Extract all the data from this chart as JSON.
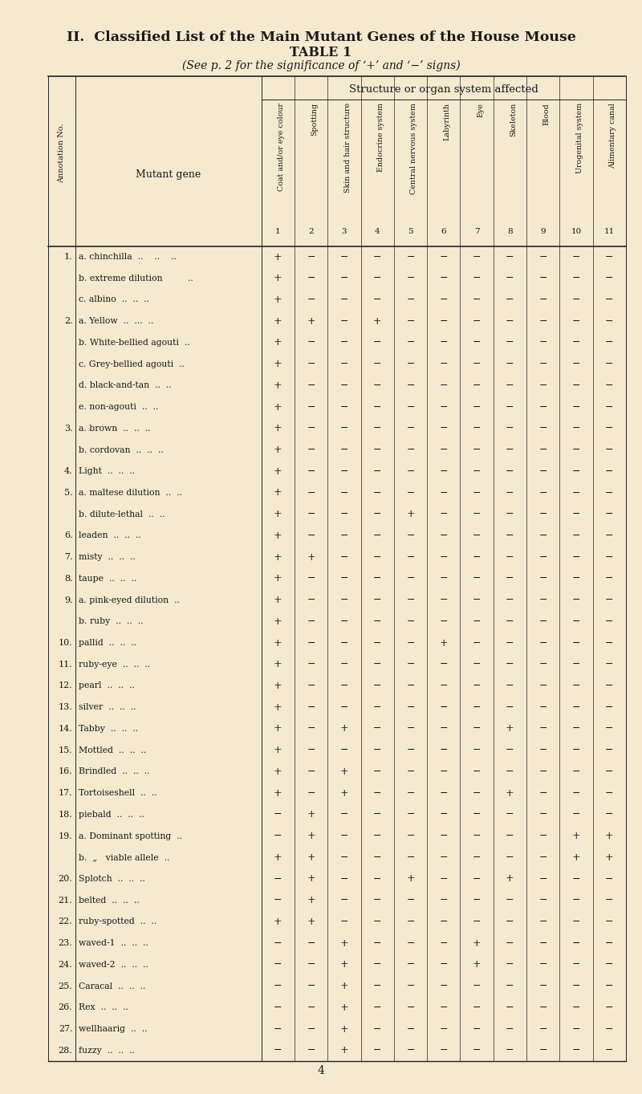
{
  "title_line1": "II.  Classified List of the Main Mutant Genes of the House Mouse",
  "title_line2": "TABLE 1",
  "title_line3": "(See p. 2 for the significance of ‘+’ and ‘−’ signs)",
  "page_number": "4",
  "bg_color": "#f5ead0",
  "col_headers": [
    "Coat and/or eye colour",
    "Spotting",
    "Skin and hair structure",
    "Endocrine system",
    "Central nervous system",
    "Labyrinth",
    "Eye",
    "Skeleton",
    "Blood",
    "Urogenital system",
    "Alimentary canal"
  ],
  "col_numbers": [
    "1",
    "2",
    "3",
    "4",
    "5",
    "6",
    "7",
    "8",
    "9",
    "10",
    "11"
  ],
  "rows": [
    {
      "num": "1.",
      "gene": "a. chinchilla  ..    ..    ..",
      "vals": [
        "+",
        "−",
        "−",
        "−",
        "−",
        "−",
        "−",
        "−",
        "−",
        "−",
        "−"
      ]
    },
    {
      "num": "",
      "gene": "b. extreme dilution         ..",
      "vals": [
        "+",
        "−",
        "−",
        "−",
        "−",
        "−",
        "−",
        "−",
        "−",
        "−",
        "−"
      ]
    },
    {
      "num": "",
      "gene": "c. albino  ..  ..  ..",
      "vals": [
        "+",
        "−",
        "−",
        "−",
        "−",
        "−",
        "−",
        "−",
        "−",
        "−",
        "−"
      ]
    },
    {
      "num": "2.",
      "gene": "a. Yellow  ..  ...  ..",
      "vals": [
        "+",
        "+",
        "−",
        "+",
        "−",
        "−",
        "−",
        "−",
        "−",
        "−",
        "−"
      ]
    },
    {
      "num": "",
      "gene": "b. White-bellied agouti  ..",
      "vals": [
        "+",
        "−",
        "−",
        "−",
        "−",
        "−",
        "−",
        "−",
        "−",
        "−",
        "−"
      ]
    },
    {
      "num": "",
      "gene": "c. Grey-bellied agouti  ..",
      "vals": [
        "+",
        "−",
        "−",
        "−",
        "−",
        "−",
        "−",
        "−",
        "−",
        "−",
        "−"
      ]
    },
    {
      "num": "",
      "gene": "d. black-and-tan  ..  ..",
      "vals": [
        "+",
        "−",
        "−",
        "−",
        "−",
        "−",
        "−",
        "−",
        "−",
        "−",
        "−"
      ]
    },
    {
      "num": "",
      "gene": "e. non-agouti  ..  ..",
      "vals": [
        "+",
        "−",
        "−",
        "−",
        "−",
        "−",
        "−",
        "−",
        "−",
        "−",
        "−"
      ]
    },
    {
      "num": "3.",
      "gene": "a. brown  ..  ..  ..",
      "vals": [
        "+",
        "−",
        "−",
        "−",
        "−",
        "−",
        "−",
        "−",
        "−",
        "−",
        "−"
      ]
    },
    {
      "num": "",
      "gene": "b. cordovan  ..  ..  ..",
      "vals": [
        "+",
        "−",
        "−",
        "−",
        "−",
        "−",
        "−",
        "−",
        "−",
        "−",
        "−"
      ]
    },
    {
      "num": "4.",
      "gene": "Light  ..  ..  ..",
      "vals": [
        "+",
        "−",
        "−",
        "−",
        "−",
        "−",
        "−",
        "−",
        "−",
        "−",
        "−"
      ]
    },
    {
      "num": "5.",
      "gene": "a. maltese dilution  ..  ..",
      "vals": [
        "+",
        "−",
        "−",
        "−",
        "−",
        "−",
        "−",
        "−",
        "−",
        "−",
        "−"
      ]
    },
    {
      "num": "",
      "gene": "b. dilute-lethal  ..  ..",
      "vals": [
        "+",
        "−",
        "−",
        "−",
        "+",
        "−",
        "−",
        "−",
        "−",
        "−",
        "−"
      ]
    },
    {
      "num": "6.",
      "gene": "leaden  ..  ..  ..",
      "vals": [
        "+",
        "−",
        "−",
        "−",
        "−",
        "−",
        "−",
        "−",
        "−",
        "−",
        "−"
      ]
    },
    {
      "num": "7.",
      "gene": "misty  ..  ..  ..",
      "vals": [
        "+",
        "+",
        "−",
        "−",
        "−",
        "−",
        "−",
        "−",
        "−",
        "−",
        "−"
      ]
    },
    {
      "num": "8.",
      "gene": "taupe  ..  ..  ..",
      "vals": [
        "+",
        "−",
        "−",
        "−",
        "−",
        "−",
        "−",
        "−",
        "−",
        "−",
        "−"
      ]
    },
    {
      "num": "9.",
      "gene": "a. pink-eyed dilution  ..",
      "vals": [
        "+",
        "−",
        "−",
        "−",
        "−",
        "−",
        "−",
        "−",
        "−",
        "−",
        "−"
      ]
    },
    {
      "num": "",
      "gene": "b. ruby  ..  ..  ..",
      "vals": [
        "+",
        "−",
        "−",
        "−",
        "−",
        "−",
        "−",
        "−",
        "−",
        "−",
        "−"
      ]
    },
    {
      "num": "10.",
      "gene": "pallid  ..  ..  ..",
      "vals": [
        "+",
        "−",
        "−",
        "−",
        "−",
        "+",
        "−",
        "−",
        "−",
        "−",
        "−"
      ]
    },
    {
      "num": "11.",
      "gene": "ruby-eye  ..  ..  ..",
      "vals": [
        "+",
        "−",
        "−",
        "−",
        "−",
        "−",
        "−",
        "−",
        "−",
        "−",
        "−"
      ]
    },
    {
      "num": "12.",
      "gene": "pearl  ..  ..  ..",
      "vals": [
        "+",
        "−",
        "−",
        "−",
        "−",
        "−",
        "−",
        "−",
        "−",
        "−",
        "−"
      ]
    },
    {
      "num": "13.",
      "gene": "silver  ..  ..  ..",
      "vals": [
        "+",
        "−",
        "−",
        "−",
        "−",
        "−",
        "−",
        "−",
        "−",
        "−",
        "−"
      ]
    },
    {
      "num": "14.",
      "gene": "Tabby  ..  ..  ..",
      "vals": [
        "+",
        "−",
        "+",
        "−",
        "−",
        "−",
        "−",
        "+",
        "−",
        "−",
        "−"
      ]
    },
    {
      "num": "15.",
      "gene": "Mottled  ..  ..  ..",
      "vals": [
        "+",
        "−",
        "−",
        "−",
        "−",
        "−",
        "−",
        "−",
        "−",
        "−",
        "−"
      ]
    },
    {
      "num": "16.",
      "gene": "Brindled  ..  ..  ..",
      "vals": [
        "+",
        "−",
        "+",
        "−",
        "−",
        "−",
        "−",
        "−",
        "−",
        "−",
        "−"
      ]
    },
    {
      "num": "17.",
      "gene": "Tortoiseshell  ..  ..",
      "vals": [
        "+",
        "−",
        "+",
        "−",
        "−",
        "−",
        "−",
        "+",
        "−",
        "−",
        "−"
      ]
    },
    {
      "num": "18.",
      "gene": "piebald  ..  ..  ..",
      "vals": [
        "−",
        "+",
        "−",
        "−",
        "−",
        "−",
        "−",
        "−",
        "−",
        "−",
        "−"
      ]
    },
    {
      "num": "19.",
      "gene": "a. Dominant spotting  ..",
      "vals": [
        "−",
        "+",
        "−",
        "−",
        "−",
        "−",
        "−",
        "−",
        "−",
        "+",
        "+"
      ]
    },
    {
      "num": "",
      "gene": "b.  „   viable allele  ..",
      "vals": [
        "+",
        "+",
        "−",
        "−",
        "−",
        "−",
        "−",
        "−",
        "−",
        "+",
        "+"
      ]
    },
    {
      "num": "20.",
      "gene": "Splotch  ..  ..  ..",
      "vals": [
        "−",
        "+",
        "−",
        "−",
        "+",
        "−",
        "−",
        "+",
        "−",
        "−",
        "−"
      ]
    },
    {
      "num": "21.",
      "gene": "belted  ..  ..  ..",
      "vals": [
        "−",
        "+",
        "−",
        "−",
        "−",
        "−",
        "−",
        "−",
        "−",
        "−",
        "−"
      ]
    },
    {
      "num": "22.",
      "gene": "ruby-spotted  ..  ..",
      "vals": [
        "+",
        "+",
        "−",
        "−",
        "−",
        "−",
        "−",
        "−",
        "−",
        "−",
        "−"
      ]
    },
    {
      "num": "23.",
      "gene": "waved-1  ..  ..  ..",
      "vals": [
        "−",
        "−",
        "+",
        "−",
        "−",
        "−",
        "+",
        "−",
        "−",
        "−",
        "−"
      ]
    },
    {
      "num": "24.",
      "gene": "waved-2  ..  ..  ..",
      "vals": [
        "−",
        "−",
        "+",
        "−",
        "−",
        "−",
        "+",
        "−",
        "−",
        "−",
        "−"
      ]
    },
    {
      "num": "25.",
      "gene": "Caracal  ..  ..  ..",
      "vals": [
        "−",
        "−",
        "+",
        "−",
        "−",
        "−",
        "−",
        "−",
        "−",
        "−",
        "−"
      ]
    },
    {
      "num": "26.",
      "gene": "Rex  ..  ..  ..",
      "vals": [
        "−",
        "−",
        "+",
        "−",
        "−",
        "−",
        "−",
        "−",
        "−",
        "−",
        "−"
      ]
    },
    {
      "num": "27.",
      "gene": "wellhaarig  ..  ..",
      "vals": [
        "−",
        "−",
        "+",
        "−",
        "−",
        "−",
        "−",
        "−",
        "−",
        "−",
        "−"
      ]
    },
    {
      "num": "28.",
      "gene": "fuzzy  ..  ..  ..",
      "vals": [
        "−",
        "−",
        "+",
        "−",
        "−",
        "−",
        "−",
        "−",
        "−",
        "−",
        "−"
      ]
    }
  ]
}
